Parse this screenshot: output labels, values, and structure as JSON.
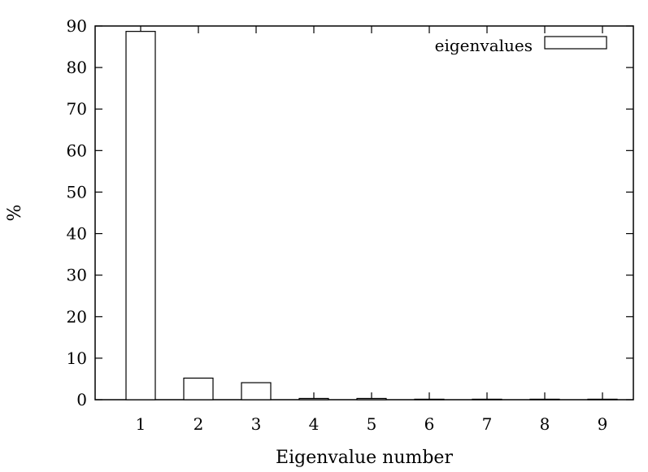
{
  "chart_data": {
    "type": "bar",
    "categories": [
      "1",
      "2",
      "3",
      "4",
      "5",
      "6",
      "7",
      "8",
      "9"
    ],
    "series": [
      {
        "name": "eigenvalues",
        "values": [
          88.7,
          5.2,
          4.1,
          0.3,
          0.3,
          0.1,
          0.1,
          0.05,
          0.05
        ]
      }
    ],
    "xlabel": "Eigenvalue number",
    "ylabel": "%",
    "ylim": [
      0,
      90
    ],
    "yticks": [
      "0",
      "10",
      "20",
      "30",
      "40",
      "50",
      "60",
      "70",
      "80",
      "90"
    ],
    "grid": false,
    "legend_position": "top-right",
    "colors": {
      "bar_fill": "#ffffff",
      "bar_stroke": "#000000",
      "axis": "#000000"
    }
  }
}
